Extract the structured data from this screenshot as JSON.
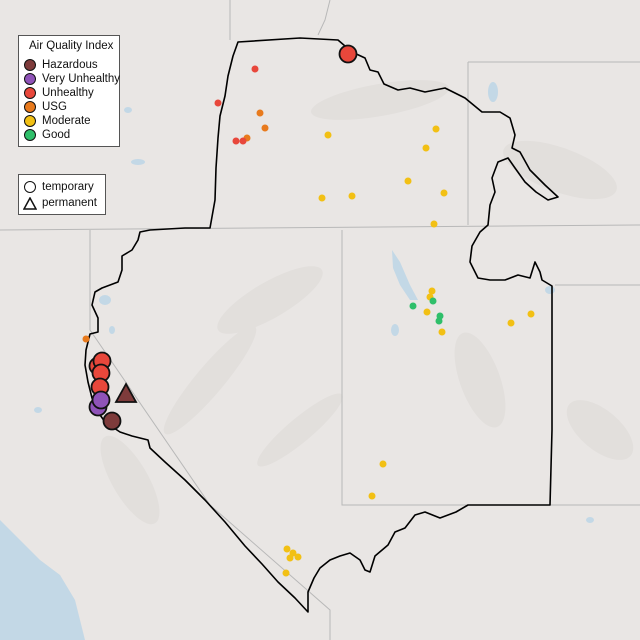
{
  "legend": {
    "title": "Air Quality Index",
    "categories": [
      {
        "label": "Hazardous",
        "color": "#7e3b3b"
      },
      {
        "label": "Very Unhealthy",
        "color": "#8f53b8"
      },
      {
        "label": "Unhealthy",
        "color": "#e8473b"
      },
      {
        "label": "USG",
        "color": "#e87a1d"
      },
      {
        "label": "Moderate",
        "color": "#f2c014"
      },
      {
        "label": "Good",
        "color": "#2fbf6a"
      }
    ],
    "monitor_types": [
      {
        "label": "temporary",
        "shape": "circle"
      },
      {
        "label": "permanent",
        "shape": "triangle"
      }
    ]
  },
  "colors": {
    "background": "#e9e6e4",
    "water": "#c3d8e6",
    "boundary": "#000000",
    "state_lines": "#b8b8b8"
  }
}
